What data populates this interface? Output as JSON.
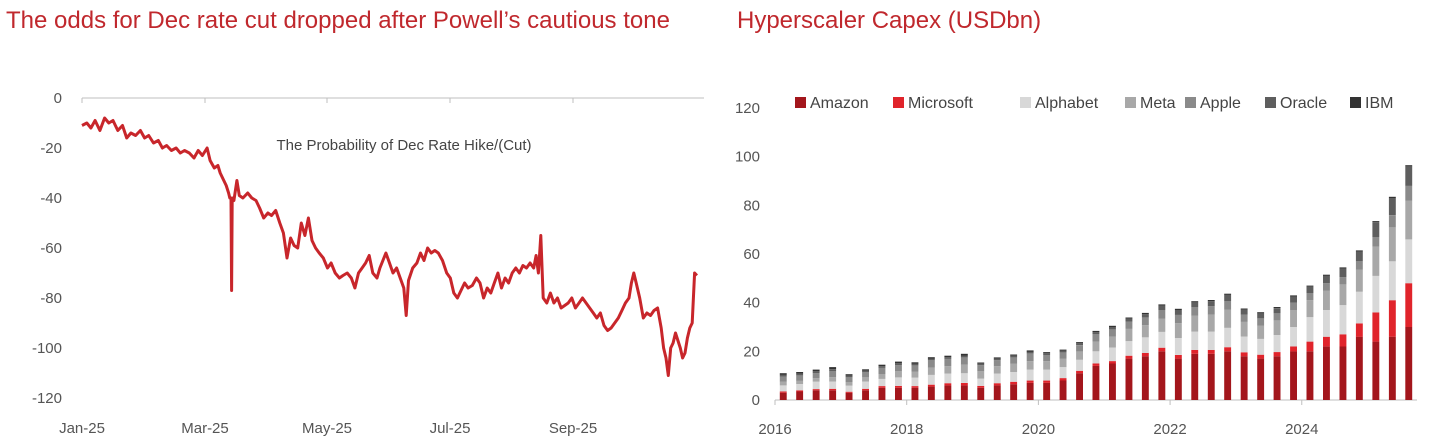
{
  "charts": [
    {
      "id": "rate-chart",
      "type": "line",
      "title": "The odds for Dec rate cut dropped after Powell’s cautious tone",
      "annotation": "The Probability of Dec Rate Hike/(Cut)",
      "xlabel": "",
      "ylabel": "",
      "ylim": [
        -120,
        0
      ],
      "yticks": [
        0,
        -20,
        -40,
        -60,
        -80,
        -100,
        -120
      ],
      "xticks": [
        "Jan-25",
        "Mar-25",
        "May-25",
        "Jul-25",
        "Sep-25"
      ],
      "xlim": [
        0,
        10
      ],
      "series_color": "#c8262b",
      "points": [
        [
          0.0,
          -11
        ],
        [
          0.08,
          -10
        ],
        [
          0.15,
          -12
        ],
        [
          0.22,
          -9
        ],
        [
          0.3,
          -13
        ],
        [
          0.38,
          -8
        ],
        [
          0.45,
          -10
        ],
        [
          0.52,
          -9
        ],
        [
          0.6,
          -13
        ],
        [
          0.68,
          -11
        ],
        [
          0.75,
          -16
        ],
        [
          0.82,
          -14
        ],
        [
          0.9,
          -15
        ],
        [
          0.98,
          -13
        ],
        [
          1.05,
          -16
        ],
        [
          1.12,
          -15
        ],
        [
          1.2,
          -18
        ],
        [
          1.28,
          -17
        ],
        [
          1.35,
          -20
        ],
        [
          1.42,
          -19
        ],
        [
          1.5,
          -21
        ],
        [
          1.58,
          -20
        ],
        [
          1.65,
          -22
        ],
        [
          1.72,
          -21
        ],
        [
          1.8,
          -22
        ],
        [
          1.88,
          -24
        ],
        [
          1.95,
          -21
        ],
        [
          2.02,
          -23
        ],
        [
          2.1,
          -20
        ],
        [
          2.15,
          -25
        ],
        [
          2.22,
          -28
        ],
        [
          2.28,
          -27
        ],
        [
          2.32,
          -30
        ],
        [
          2.38,
          -33
        ],
        [
          2.42,
          -35
        ],
        [
          2.46,
          -38
        ],
        [
          2.48,
          -40
        ],
        [
          2.5,
          -40
        ],
        [
          2.51,
          -77
        ],
        [
          2.52,
          -40
        ],
        [
          2.55,
          -41
        ],
        [
          2.6,
          -33
        ],
        [
          2.64,
          -39
        ],
        [
          2.7,
          -40
        ],
        [
          2.78,
          -38
        ],
        [
          2.85,
          -40
        ],
        [
          2.92,
          -41
        ],
        [
          2.98,
          -44
        ],
        [
          3.05,
          -48
        ],
        [
          3.12,
          -46
        ],
        [
          3.18,
          -47
        ],
        [
          3.25,
          -45
        ],
        [
          3.32,
          -50
        ],
        [
          3.38,
          -54
        ],
        [
          3.44,
          -64
        ],
        [
          3.5,
          -56
        ],
        [
          3.56,
          -59
        ],
        [
          3.62,
          -60
        ],
        [
          3.68,
          -50
        ],
        [
          3.74,
          -55
        ],
        [
          3.8,
          -48
        ],
        [
          3.86,
          -57
        ],
        [
          3.92,
          -60
        ],
        [
          3.98,
          -62
        ],
        [
          4.05,
          -64
        ],
        [
          4.12,
          -68
        ],
        [
          4.18,
          -66
        ],
        [
          4.25,
          -70
        ],
        [
          4.32,
          -72
        ],
        [
          4.38,
          -71
        ],
        [
          4.45,
          -70
        ],
        [
          4.52,
          -72
        ],
        [
          4.58,
          -76
        ],
        [
          4.64,
          -70
        ],
        [
          4.7,
          -68
        ],
        [
          4.76,
          -66
        ],
        [
          4.82,
          -63
        ],
        [
          4.88,
          -70
        ],
        [
          4.95,
          -72
        ],
        [
          5.0,
          -68
        ],
        [
          5.05,
          -65
        ],
        [
          5.1,
          -62
        ],
        [
          5.16,
          -66
        ],
        [
          5.22,
          -70
        ],
        [
          5.28,
          -68
        ],
        [
          5.34,
          -72
        ],
        [
          5.4,
          -76
        ],
        [
          5.44,
          -87
        ],
        [
          5.48,
          -73
        ],
        [
          5.55,
          -68
        ],
        [
          5.62,
          -66
        ],
        [
          5.68,
          -62
        ],
        [
          5.74,
          -65
        ],
        [
          5.8,
          -60
        ],
        [
          5.86,
          -62
        ],
        [
          5.92,
          -61
        ],
        [
          5.98,
          -62
        ],
        [
          6.05,
          -65
        ],
        [
          6.12,
          -70
        ],
        [
          6.18,
          -72
        ],
        [
          6.24,
          -78
        ],
        [
          6.3,
          -80
        ],
        [
          6.36,
          -77
        ],
        [
          6.42,
          -74
        ],
        [
          6.48,
          -76
        ],
        [
          6.55,
          -75
        ],
        [
          6.62,
          -72
        ],
        [
          6.68,
          -74
        ],
        [
          6.74,
          -80
        ],
        [
          6.8,
          -76
        ],
        [
          6.86,
          -78
        ],
        [
          6.92,
          -74
        ],
        [
          6.98,
          -70
        ],
        [
          7.04,
          -76
        ],
        [
          7.1,
          -72
        ],
        [
          7.16,
          -74
        ],
        [
          7.22,
          -70
        ],
        [
          7.28,
          -68
        ],
        [
          7.34,
          -70
        ],
        [
          7.4,
          -67
        ],
        [
          7.46,
          -68
        ],
        [
          7.52,
          -66
        ],
        [
          7.58,
          -68
        ],
        [
          7.62,
          -63
        ],
        [
          7.66,
          -70
        ],
        [
          7.7,
          -55
        ],
        [
          7.74,
          -80
        ],
        [
          7.8,
          -82
        ],
        [
          7.86,
          -78
        ],
        [
          7.92,
          -82
        ],
        [
          7.98,
          -80
        ],
        [
          8.04,
          -84
        ],
        [
          8.1,
          -83
        ],
        [
          8.16,
          -82
        ],
        [
          8.22,
          -80
        ],
        [
          8.28,
          -84
        ],
        [
          8.34,
          -82
        ],
        [
          8.4,
          -80
        ],
        [
          8.46,
          -82
        ],
        [
          8.52,
          -84
        ],
        [
          8.58,
          -86
        ],
        [
          8.64,
          -88
        ],
        [
          8.7,
          -86
        ],
        [
          8.76,
          -91
        ],
        [
          8.82,
          -93
        ],
        [
          8.88,
          -92
        ],
        [
          8.94,
          -90
        ],
        [
          9.0,
          -88
        ],
        [
          9.06,
          -85
        ],
        [
          9.12,
          -82
        ],
        [
          9.18,
          -80
        ],
        [
          9.22,
          -74
        ],
        [
          9.26,
          -70
        ],
        [
          9.3,
          -74
        ],
        [
          9.36,
          -80
        ],
        [
          9.42,
          -88
        ],
        [
          9.48,
          -86
        ],
        [
          9.54,
          -87
        ],
        [
          9.6,
          -85
        ],
        [
          9.66,
          -84
        ],
        [
          9.72,
          -92
        ],
        [
          9.76,
          -100
        ],
        [
          9.8,
          -104
        ],
        [
          9.84,
          -111
        ],
        [
          9.88,
          -100
        ],
        [
          9.92,
          -98
        ],
        [
          9.96,
          -94
        ],
        [
          10.0,
          -97
        ],
        [
          10.04,
          -100
        ],
        [
          10.08,
          -104
        ],
        [
          10.12,
          -102
        ],
        [
          10.16,
          -96
        ],
        [
          10.2,
          -92
        ],
        [
          10.24,
          -90
        ],
        [
          10.26,
          -80
        ],
        [
          10.28,
          -70
        ],
        [
          10.32,
          -71
        ]
      ]
    },
    {
      "id": "capex-chart",
      "type": "bar",
      "stacked": true,
      "title": "Hyperscaler Capex (USDbn)",
      "xlabel": "",
      "ylabel": "",
      "ylim": [
        0,
        120
      ],
      "yticks": [
        0,
        20,
        40,
        60,
        80,
        100,
        120
      ],
      "xticks": [
        "2016",
        "2018",
        "2020",
        "2022",
        "2024"
      ],
      "tick_period_quarters": 8,
      "categories": [
        "2016Q1",
        "2016Q2",
        "2016Q3",
        "2016Q4",
        "2017Q1",
        "2017Q2",
        "2017Q3",
        "2017Q4",
        "2018Q1",
        "2018Q2",
        "2018Q3",
        "2018Q4",
        "2019Q1",
        "2019Q2",
        "2019Q3",
        "2019Q4",
        "2020Q1",
        "2020Q2",
        "2020Q3",
        "2020Q4",
        "2021Q1",
        "2021Q2",
        "2021Q3",
        "2021Q4",
        "2022Q1",
        "2022Q2",
        "2022Q3",
        "2022Q4",
        "2023Q1",
        "2023Q2",
        "2023Q3",
        "2023Q4",
        "2024Q1",
        "2024Q2",
        "2024Q3",
        "2024Q4",
        "2025Q1",
        "2025Q2",
        "2025Q3"
      ],
      "legend_position": "top",
      "series": [
        {
          "name": "Amazon",
          "color": "#a3161c",
          "values": [
            3,
            3.5,
            4,
            4,
            3,
            4,
            5,
            5,
            5,
            5.5,
            6,
            6,
            5,
            6,
            6.5,
            7,
            7,
            8,
            11,
            14,
            15,
            17,
            18,
            20,
            17,
            19,
            19,
            20,
            18,
            17,
            18,
            20,
            20,
            22,
            22,
            26,
            24,
            26,
            30
          ]
        },
        {
          "name": "Microsoft",
          "color": "#e0242b",
          "values": [
            0.5,
            0.5,
            0.5,
            0.6,
            0.4,
            0.6,
            0.7,
            0.8,
            0.7,
            0.8,
            0.9,
            1,
            0.8,
            0.9,
            1,
            1,
            1,
            1,
            1,
            1,
            1,
            1.2,
            1.3,
            1.5,
            1.5,
            1.6,
            1.6,
            1.7,
            1.6,
            1.6,
            1.7,
            2,
            4,
            4,
            5,
            5.5,
            12,
            15,
            18
          ]
        },
        {
          "name": "Alphabet",
          "color": "#d8d8d8",
          "values": [
            2.5,
            2.5,
            3,
            3,
            2.5,
            3,
            3,
            3.5,
            3.5,
            4,
            4,
            4,
            3,
            4,
            4,
            4.5,
            4.5,
            4.5,
            4.5,
            5,
            5.5,
            6,
            6.5,
            6.5,
            7,
            7.5,
            7.5,
            8,
            6.5,
            6.5,
            7,
            8,
            10,
            11,
            12,
            13,
            15,
            16,
            18
          ]
        },
        {
          "name": "Meta",
          "color": "#a8a8a8",
          "values": [
            1.5,
            1.5,
            1.5,
            1.8,
            1.5,
            1.8,
            2,
            2.5,
            2.5,
            3,
            3,
            3.5,
            3,
            3,
            3.5,
            3.5,
            3.5,
            3.5,
            3.5,
            4,
            4.5,
            5,
            5,
            5.5,
            6,
            6.5,
            7,
            7.5,
            6,
            5.5,
            6,
            7,
            7,
            8,
            8.5,
            9,
            12,
            14,
            16
          ]
        },
        {
          "name": "Apple",
          "color": "#8a8a8a",
          "values": [
            2,
            2,
            2,
            2.5,
            2,
            2,
            2.5,
            2.5,
            2.5,
            3,
            3,
            3,
            2.5,
            2.5,
            2.5,
            3,
            2.5,
            2.5,
            2.5,
            3,
            3,
            3,
            3,
            3.5,
            3.5,
            3.5,
            3.5,
            3.5,
            3,
            3,
            3,
            3,
            3,
            3,
            3,
            3.5,
            4,
            5,
            6
          ]
        },
        {
          "name": "Oracle",
          "color": "#5e5e5e",
          "values": [
            0.8,
            0.8,
            0.8,
            0.8,
            0.6,
            0.6,
            0.7,
            0.8,
            0.7,
            0.7,
            0.7,
            0.8,
            0.6,
            0.6,
            0.7,
            0.8,
            0.7,
            0.7,
            0.8,
            0.9,
            1,
            1.2,
            1.5,
            1.8,
            2,
            2,
            2,
            2.5,
            2,
            2,
            2,
            2.5,
            2.5,
            3,
            3.5,
            4,
            6,
            7,
            8
          ]
        },
        {
          "name": "IBM",
          "color": "#333333",
          "values": [
            0.7,
            0.7,
            0.7,
            0.8,
            0.6,
            0.6,
            0.6,
            0.7,
            0.6,
            0.6,
            0.6,
            0.7,
            0.5,
            0.5,
            0.5,
            0.6,
            0.5,
            0.5,
            0.5,
            0.5,
            0.5,
            0.5,
            0.5,
            0.5,
            0.5,
            0.5,
            0.5,
            0.5,
            0.5,
            0.5,
            0.5,
            0.5,
            0.5,
            0.5,
            0.5,
            0.5,
            0.5,
            0.5,
            0.5
          ]
        }
      ]
    }
  ]
}
